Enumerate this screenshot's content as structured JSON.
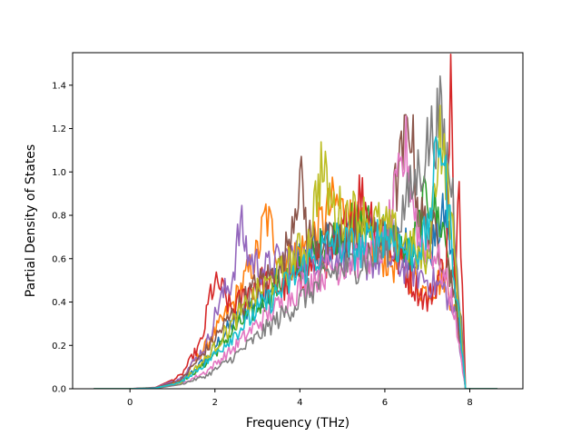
{
  "chart_data": {
    "type": "line",
    "xlabel": "Frequency (THz)",
    "ylabel": "Partial Density of States",
    "xlim": [
      -1.35,
      9.25
    ],
    "ylim": [
      0,
      1.55
    ],
    "x_ticks": [
      0,
      2,
      4,
      6,
      8
    ],
    "x_tick_labels": [
      "0",
      "2",
      "4",
      "6",
      "8"
    ],
    "y_ticks": [
      0,
      0.2,
      0.4,
      0.6,
      0.8,
      1.0,
      1.2,
      1.4
    ],
    "y_tick_labels": [
      "0.0",
      "0.2",
      "0.4",
      "0.6",
      "0.8",
      "1.0",
      "1.2",
      "1.4"
    ],
    "grid": false,
    "legend": "none",
    "colors": [
      "#1f77b4",
      "#ff7f0e",
      "#2ca02c",
      "#d62728",
      "#9467bd",
      "#8c564b",
      "#e377c2",
      "#7f7f7f",
      "#bcbd22",
      "#17becf"
    ],
    "series": [
      {
        "values": [
          [
            -0.85,
            0
          ],
          [
            0.0,
            0.0
          ],
          [
            0.6,
            0.003
          ],
          [
            1.2,
            0.03
          ],
          [
            1.8,
            0.14
          ],
          [
            2.4,
            0.3
          ],
          [
            3.0,
            0.42
          ],
          [
            3.6,
            0.54
          ],
          [
            4.2,
            0.62
          ],
          [
            4.8,
            0.68
          ],
          [
            5.4,
            0.72
          ],
          [
            6.0,
            0.7
          ],
          [
            6.6,
            0.65
          ],
          [
            7.0,
            0.6
          ],
          [
            7.4,
            0.8
          ],
          [
            7.7,
            0.5
          ],
          [
            7.9,
            0.0
          ],
          [
            8.65,
            0
          ]
        ]
      },
      {
        "values": [
          [
            -0.85,
            0
          ],
          [
            0.0,
            0.0
          ],
          [
            0.6,
            0.004
          ],
          [
            1.2,
            0.04
          ],
          [
            1.8,
            0.2
          ],
          [
            2.4,
            0.38
          ],
          [
            3.0,
            0.62
          ],
          [
            3.2,
            0.8
          ],
          [
            3.6,
            0.58
          ],
          [
            4.2,
            0.66
          ],
          [
            4.8,
            0.86
          ],
          [
            5.4,
            0.74
          ],
          [
            6.0,
            0.6
          ],
          [
            6.6,
            0.52
          ],
          [
            7.0,
            0.44
          ],
          [
            7.4,
            0.52
          ],
          [
            7.7,
            0.32
          ],
          [
            7.9,
            0.0
          ],
          [
            8.65,
            0
          ]
        ]
      },
      {
        "values": [
          [
            -0.85,
            0
          ],
          [
            0.0,
            0.0
          ],
          [
            0.6,
            0.003
          ],
          [
            1.2,
            0.03
          ],
          [
            1.8,
            0.12
          ],
          [
            2.4,
            0.26
          ],
          [
            3.0,
            0.38
          ],
          [
            3.6,
            0.5
          ],
          [
            4.2,
            0.6
          ],
          [
            4.8,
            0.7
          ],
          [
            5.4,
            0.76
          ],
          [
            6.0,
            0.72
          ],
          [
            6.6,
            0.6
          ],
          [
            7.0,
            0.9
          ],
          [
            7.4,
            0.72
          ],
          [
            7.7,
            0.38
          ],
          [
            7.9,
            0.0
          ],
          [
            8.65,
            0
          ]
        ]
      },
      {
        "values": [
          [
            -0.85,
            0
          ],
          [
            0.0,
            0.0
          ],
          [
            0.6,
            0.006
          ],
          [
            1.2,
            0.06
          ],
          [
            1.7,
            0.22
          ],
          [
            1.9,
            0.45
          ],
          [
            2.1,
            0.48
          ],
          [
            2.4,
            0.36
          ],
          [
            3.0,
            0.5
          ],
          [
            3.6,
            0.46
          ],
          [
            4.2,
            0.56
          ],
          [
            4.8,
            0.62
          ],
          [
            5.4,
            0.9
          ],
          [
            6.0,
            0.7
          ],
          [
            6.6,
            0.5
          ],
          [
            7.0,
            0.4
          ],
          [
            7.45,
            0.6
          ],
          [
            7.55,
            1.51
          ],
          [
            7.65,
            0.4
          ],
          [
            7.75,
            0.95
          ],
          [
            7.9,
            0.0
          ],
          [
            8.65,
            0
          ]
        ]
      },
      {
        "values": [
          [
            -0.85,
            0
          ],
          [
            0.0,
            0.0
          ],
          [
            0.6,
            0.005
          ],
          [
            1.2,
            0.05
          ],
          [
            1.8,
            0.2
          ],
          [
            2.1,
            0.4
          ],
          [
            2.4,
            0.5
          ],
          [
            2.6,
            0.76
          ],
          [
            2.8,
            0.6
          ],
          [
            3.2,
            0.55
          ],
          [
            3.6,
            0.6
          ],
          [
            4.2,
            0.6
          ],
          [
            4.8,
            0.62
          ],
          [
            5.4,
            0.58
          ],
          [
            6.0,
            0.6
          ],
          [
            6.6,
            0.56
          ],
          [
            7.0,
            0.5
          ],
          [
            7.4,
            0.46
          ],
          [
            7.7,
            0.3
          ],
          [
            7.9,
            0.0
          ],
          [
            8.65,
            0
          ]
        ]
      },
      {
        "values": [
          [
            -0.85,
            0
          ],
          [
            0.0,
            0.0
          ],
          [
            0.6,
            0.004
          ],
          [
            1.2,
            0.04
          ],
          [
            1.8,
            0.18
          ],
          [
            2.4,
            0.34
          ],
          [
            3.0,
            0.48
          ],
          [
            3.6,
            0.56
          ],
          [
            4.0,
            0.98
          ],
          [
            4.2,
            0.7
          ],
          [
            4.8,
            0.66
          ],
          [
            5.4,
            0.7
          ],
          [
            6.0,
            0.68
          ],
          [
            6.6,
            1.25
          ],
          [
            6.8,
            0.8
          ],
          [
            7.2,
            0.7
          ],
          [
            7.6,
            0.5
          ],
          [
            7.9,
            0.0
          ],
          [
            8.65,
            0
          ]
        ]
      },
      {
        "values": [
          [
            -0.85,
            0
          ],
          [
            0.0,
            0.0
          ],
          [
            0.6,
            0.002
          ],
          [
            1.2,
            0.02
          ],
          [
            1.8,
            0.08
          ],
          [
            2.4,
            0.18
          ],
          [
            3.0,
            0.3
          ],
          [
            3.6,
            0.4
          ],
          [
            4.2,
            0.5
          ],
          [
            4.8,
            0.56
          ],
          [
            5.4,
            0.6
          ],
          [
            6.0,
            0.66
          ],
          [
            6.5,
            1.1
          ],
          [
            6.8,
            0.7
          ],
          [
            7.2,
            0.62
          ],
          [
            7.6,
            0.4
          ],
          [
            7.9,
            0.0
          ],
          [
            8.65,
            0
          ]
        ]
      },
      {
        "values": [
          [
            -0.85,
            0
          ],
          [
            0.0,
            0.0
          ],
          [
            0.6,
            0.002
          ],
          [
            1.2,
            0.02
          ],
          [
            1.8,
            0.06
          ],
          [
            2.4,
            0.14
          ],
          [
            3.0,
            0.24
          ],
          [
            3.6,
            0.34
          ],
          [
            4.2,
            0.44
          ],
          [
            4.8,
            0.54
          ],
          [
            5.4,
            0.58
          ],
          [
            6.0,
            0.64
          ],
          [
            6.6,
            0.9
          ],
          [
            7.0,
            1.12
          ],
          [
            7.3,
            1.25
          ],
          [
            7.6,
            0.9
          ],
          [
            7.9,
            0.0
          ],
          [
            8.65,
            0
          ]
        ]
      },
      {
        "values": [
          [
            -0.85,
            0
          ],
          [
            0.0,
            0.0
          ],
          [
            0.6,
            0.003
          ],
          [
            1.2,
            0.03
          ],
          [
            1.8,
            0.14
          ],
          [
            2.4,
            0.3
          ],
          [
            3.0,
            0.44
          ],
          [
            3.6,
            0.54
          ],
          [
            4.2,
            0.68
          ],
          [
            4.5,
            1.02
          ],
          [
            4.8,
            0.82
          ],
          [
            5.4,
            0.8
          ],
          [
            6.0,
            0.74
          ],
          [
            6.6,
            0.66
          ],
          [
            7.0,
            0.56
          ],
          [
            7.3,
            1.22
          ],
          [
            7.6,
            0.7
          ],
          [
            7.9,
            0.0
          ],
          [
            8.65,
            0
          ]
        ]
      },
      {
        "values": [
          [
            -0.85,
            0
          ],
          [
            0.0,
            0.0
          ],
          [
            0.6,
            0.003
          ],
          [
            1.2,
            0.03
          ],
          [
            1.8,
            0.12
          ],
          [
            2.4,
            0.24
          ],
          [
            3.0,
            0.36
          ],
          [
            3.6,
            0.46
          ],
          [
            4.2,
            0.58
          ],
          [
            4.8,
            0.68
          ],
          [
            5.4,
            0.64
          ],
          [
            6.0,
            0.72
          ],
          [
            6.6,
            0.62
          ],
          [
            7.0,
            0.7
          ],
          [
            7.3,
            1.2
          ],
          [
            7.6,
            0.62
          ],
          [
            7.9,
            0.0
          ],
          [
            8.65,
            0
          ]
        ]
      }
    ]
  }
}
